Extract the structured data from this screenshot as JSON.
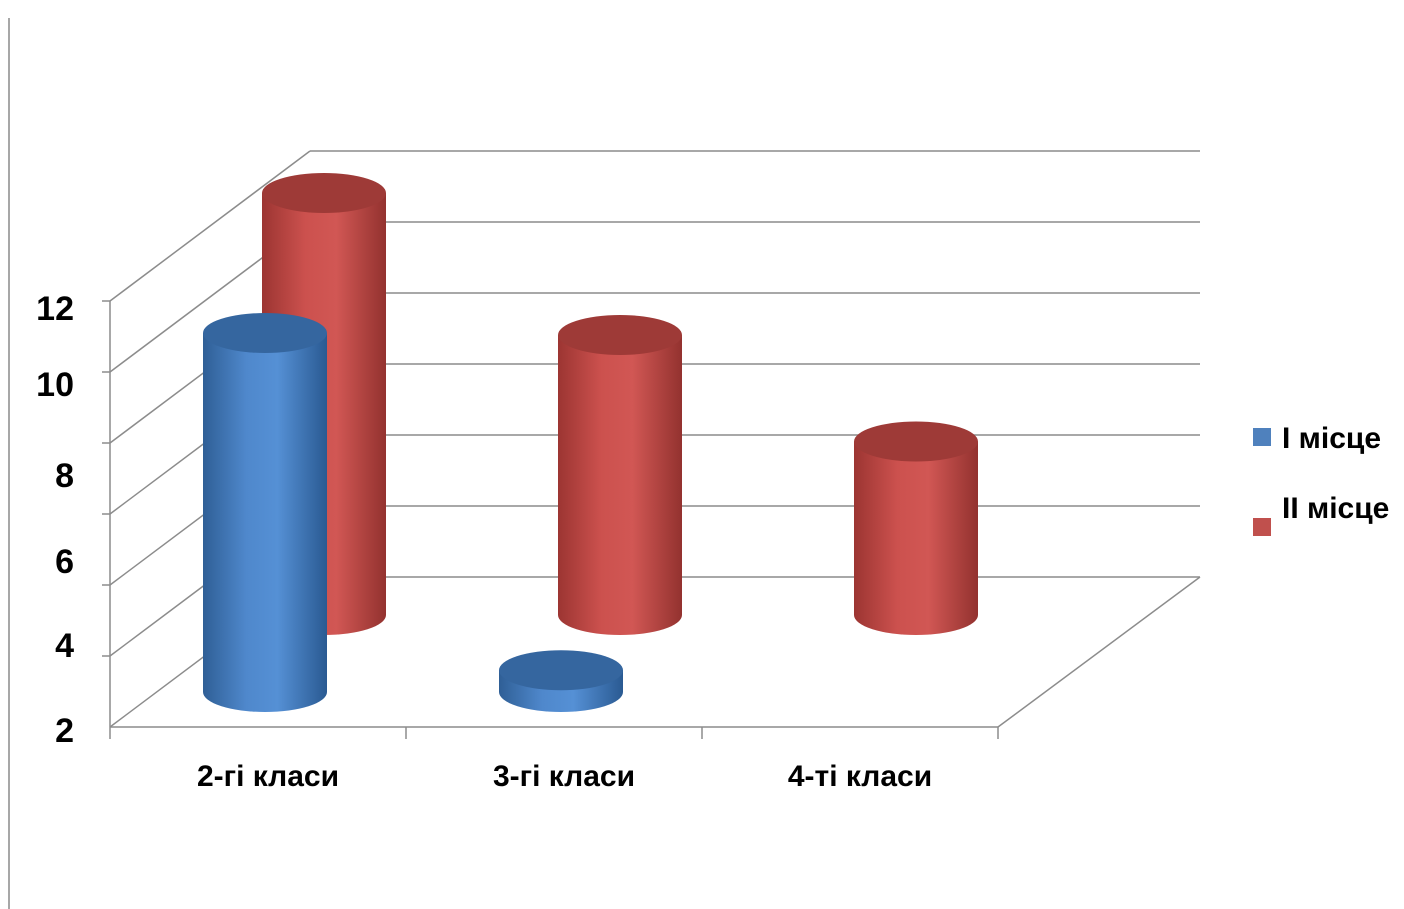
{
  "chart_data": {
    "type": "bar",
    "style": "3d-cylinder",
    "categories": [
      "2-гі класи",
      "3-гі класи",
      "4-ті класи"
    ],
    "series": [
      {
        "name": "І місце",
        "color": "#4f81bd",
        "values": [
          10,
          0.5,
          0
        ]
      },
      {
        "name": "ІІ місце",
        "color": "#c0504d",
        "values": [
          12,
          8,
          5
        ]
      }
    ],
    "y_ticks": [
      "2",
      "4",
      "6",
      "8",
      "10",
      "12"
    ],
    "ylim": [
      0,
      12
    ],
    "grid": true,
    "legend_position": "right"
  }
}
